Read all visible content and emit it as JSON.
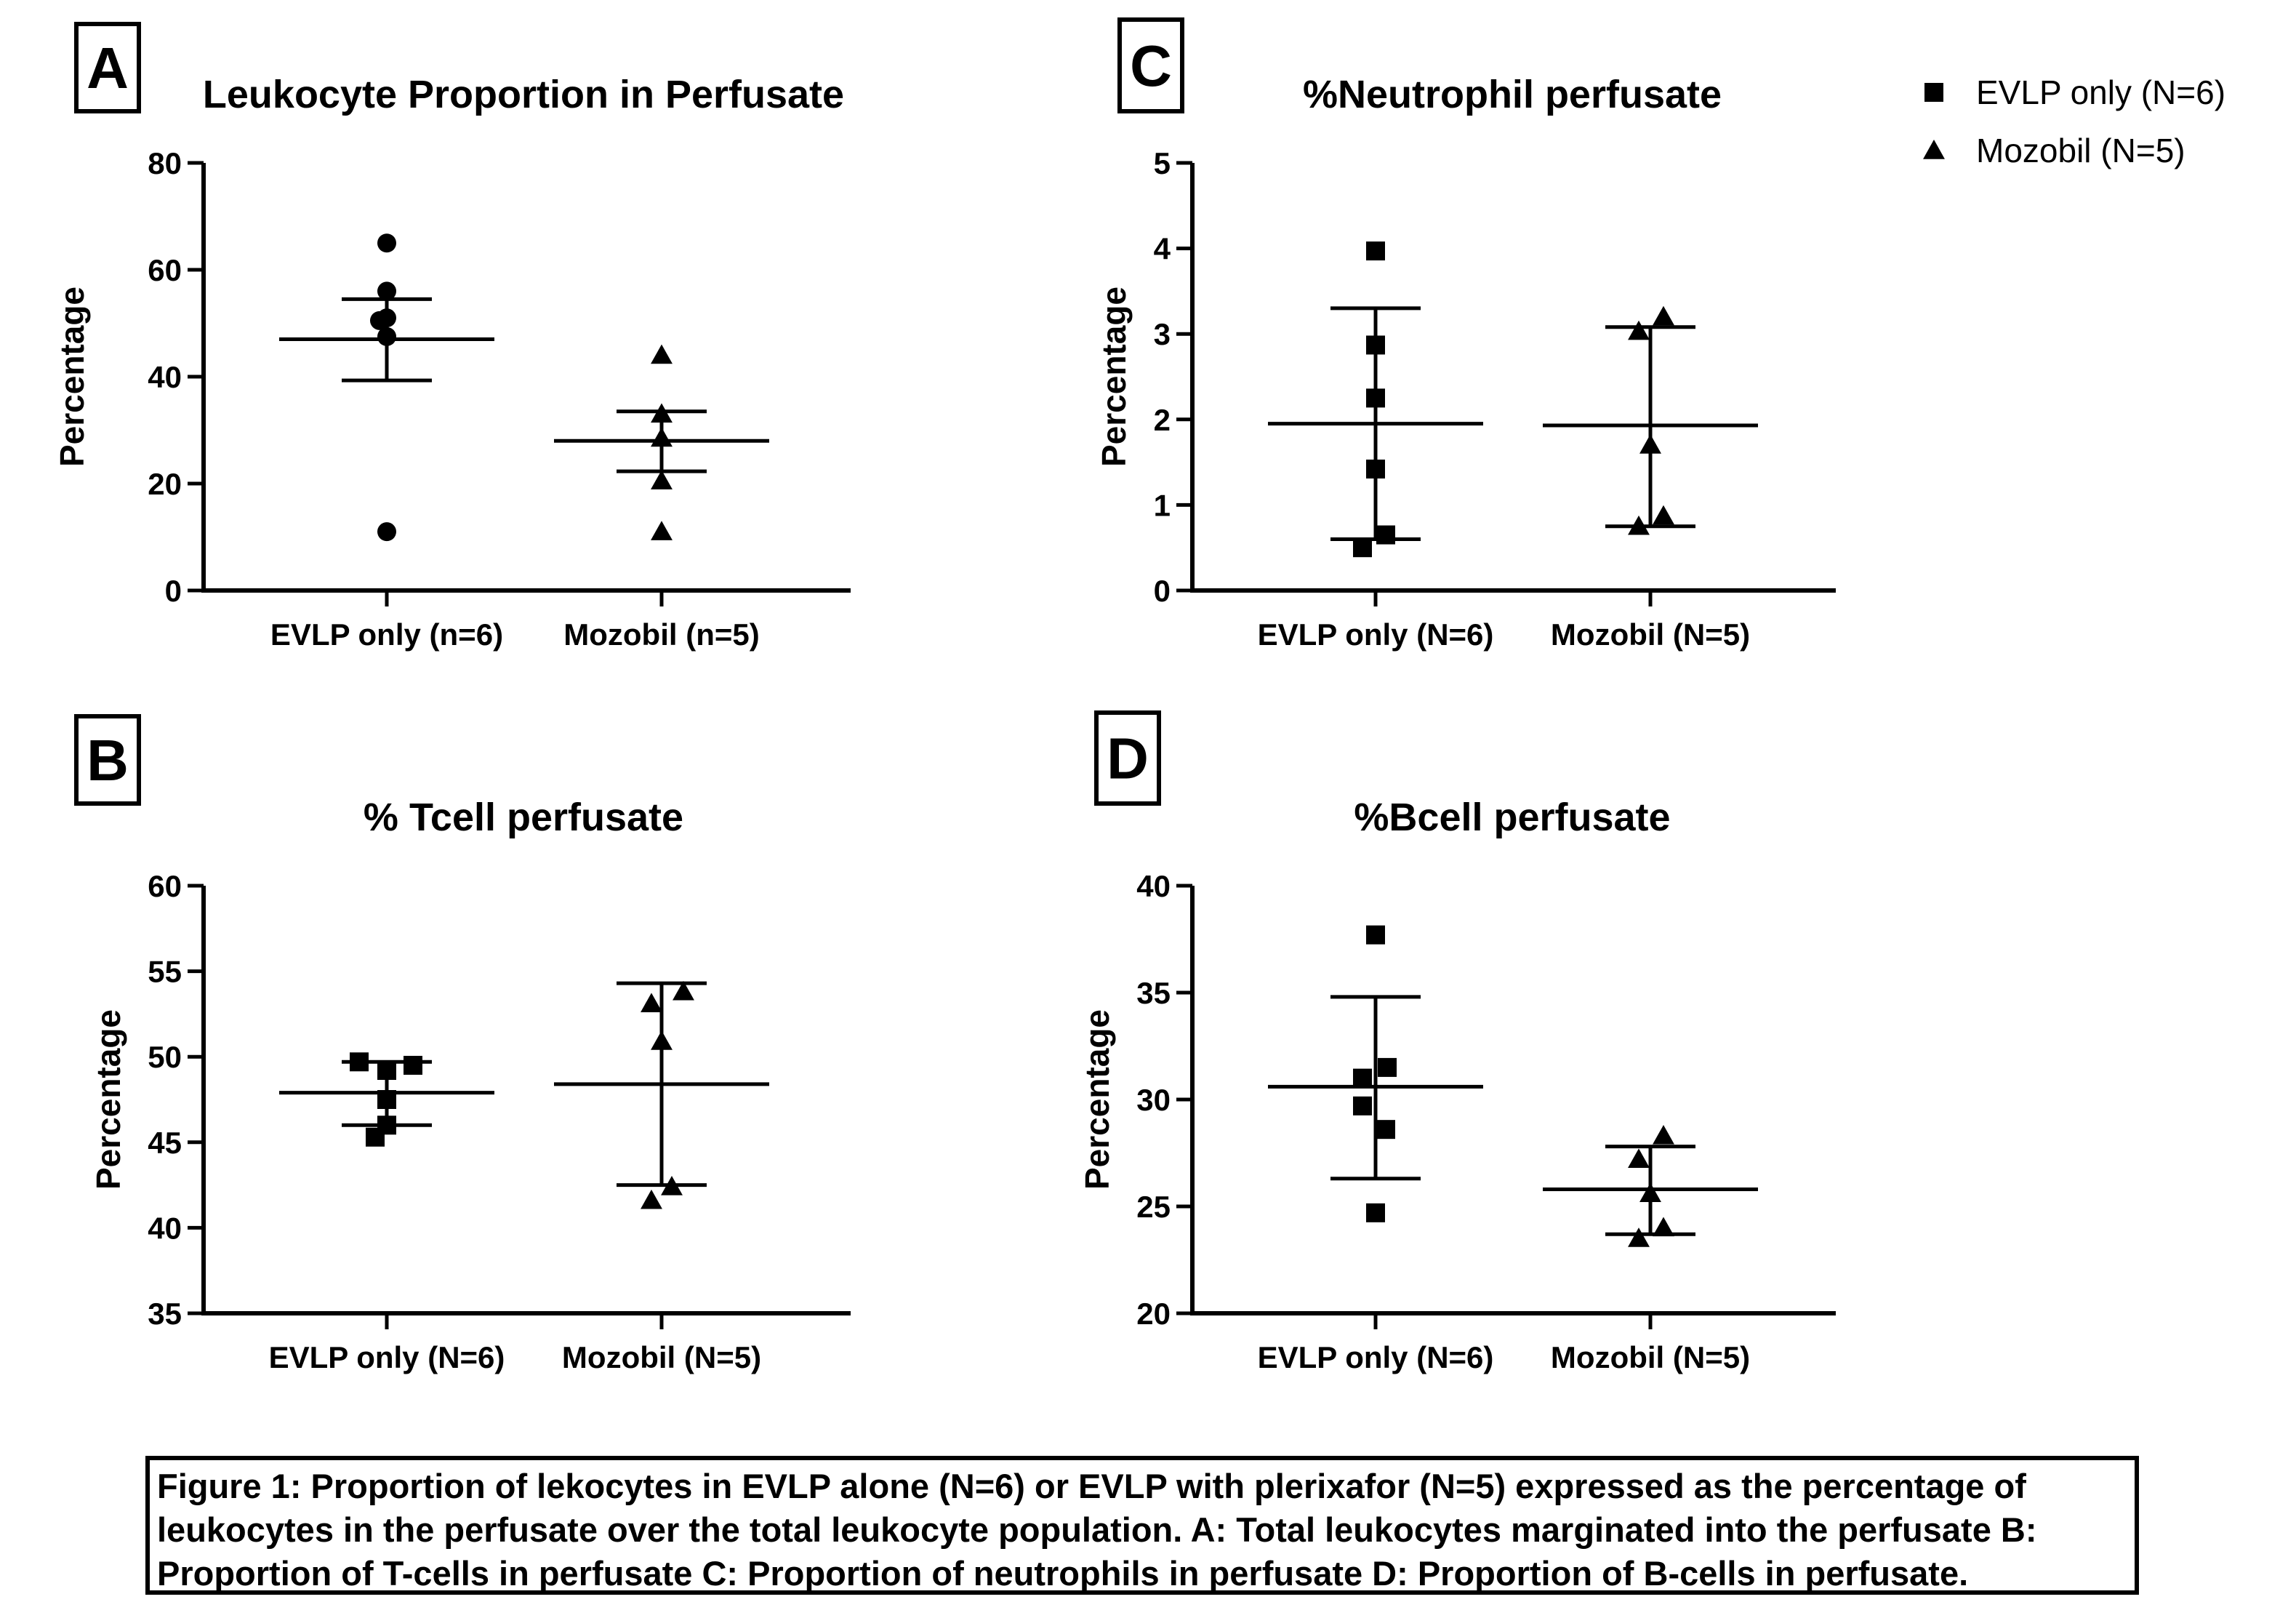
{
  "caption": "Figure 1: Proportion of lekocytes in EVLP alone  (N=6) or EVLP with plerixafor (N=5) expressed as the percentage of\nleukocytes in the perfusate over the total leukocyte population. A: Total leukocytes marginated into the perfusate B:\nProportion of  T-cells in perfusate  C: Proportion of neutrophils in perfusate  D: Proportion of B-cells in perfusate.",
  "legend": [
    {
      "label": "EVLP only (N=6)",
      "marker": "square"
    },
    {
      "label": "Mozobil (N=5)",
      "marker": "triangle"
    }
  ],
  "colors": {
    "ink": "#000000",
    "background": "#ffffff"
  },
  "chart_data": [
    {
      "panel": "A",
      "type": "scatter",
      "title": "Leukocyte Proportion in Perfusate",
      "xlabel": "",
      "ylabel": "Percentage",
      "ylim": [
        0,
        80
      ],
      "yticks": [
        "0",
        "20",
        "40",
        "60",
        "80"
      ],
      "categories": [
        "EVLP only (n=6)",
        "Mozobil (n=5)"
      ],
      "series": [
        {
          "values": [
            65,
            56,
            51,
            50.5,
            47.5,
            11
          ],
          "marker": "circle",
          "mean": 47,
          "err_low": 39.3,
          "err_high": 54.5
        },
        {
          "values": [
            44,
            33,
            28.5,
            20.5,
            11
          ],
          "marker": "triangle",
          "mean": 28,
          "err_low": 22.3,
          "err_high": 33.5
        }
      ]
    },
    {
      "panel": "B",
      "type": "scatter",
      "title": "% Tcell perfusate",
      "xlabel": "",
      "ylabel": "Percentage",
      "ylim": [
        35,
        60
      ],
      "yticks": [
        "35",
        "40",
        "45",
        "50",
        "55",
        "60"
      ],
      "categories": [
        "EVLP only (N=6)",
        "Mozobil (N=5)"
      ],
      "series": [
        {
          "values": [
            49.7,
            49.5,
            49.2,
            47.5,
            46,
            45.3
          ],
          "marker": "square",
          "mean": 47.9,
          "err_low": 46,
          "err_high": 49.7
        },
        {
          "values": [
            53.8,
            53.1,
            50.9,
            42.4,
            41.6
          ],
          "marker": "triangle",
          "mean": 48.4,
          "err_low": 42.5,
          "err_high": 54.3
        }
      ]
    },
    {
      "panel": "C",
      "type": "scatter",
      "title": "%Neutrophil perfusate",
      "xlabel": "",
      "ylabel": "Percentage",
      "ylim": [
        0,
        5
      ],
      "yticks": [
        "0",
        "1",
        "2",
        "3",
        "4",
        "5"
      ],
      "categories": [
        "EVLP only (N=6)",
        "Mozobil (N=5)"
      ],
      "series": [
        {
          "values": [
            3.97,
            2.87,
            2.25,
            1.42,
            0.65,
            0.5
          ],
          "marker": "square",
          "mean": 1.95,
          "err_low": 0.6,
          "err_high": 3.3
        },
        {
          "values": [
            3.2,
            3.03,
            1.7,
            0.87,
            0.75
          ],
          "marker": "triangle",
          "mean": 1.93,
          "err_low": 0.75,
          "err_high": 3.08
        }
      ]
    },
    {
      "panel": "D",
      "type": "scatter",
      "title": "%Bcell perfusate",
      "xlabel": "",
      "ylabel": "Percentage",
      "ylim": [
        20,
        40
      ],
      "yticks": [
        "20",
        "25",
        "30",
        "35",
        "40"
      ],
      "categories": [
        "EVLP only (N=6)",
        "Mozobil (N=5)"
      ],
      "series": [
        {
          "values": [
            37.7,
            31.5,
            31,
            29.7,
            28.6,
            24.7
          ],
          "marker": "square",
          "mean": 30.6,
          "err_low": 26.3,
          "err_high": 34.8
        },
        {
          "values": [
            28.3,
            27.2,
            25.6,
            24,
            23.5
          ],
          "marker": "triangle",
          "mean": 25.8,
          "err_low": 23.7,
          "err_high": 27.8
        }
      ]
    }
  ]
}
